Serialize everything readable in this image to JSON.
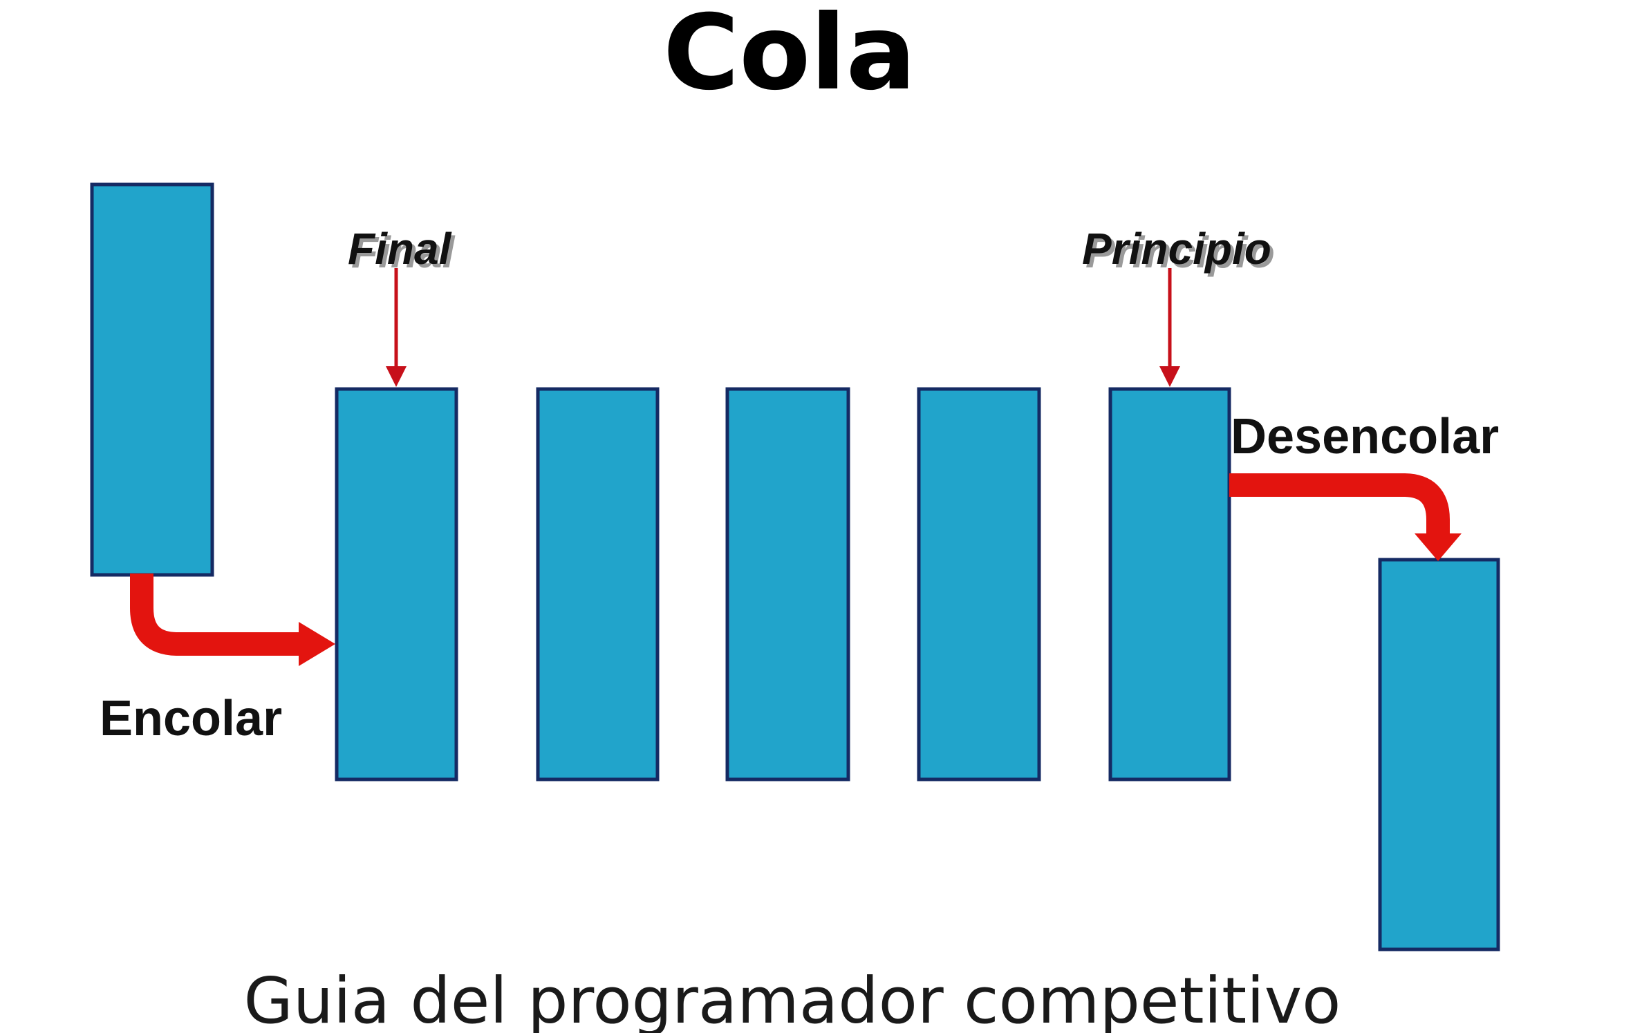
{
  "title": "Cola",
  "subtitle": "Guia del programador competitivo",
  "labels": {
    "enqueue": "Encolar",
    "dequeue": "Desencolar",
    "rear": "Final",
    "front": "Principio"
  },
  "colors": {
    "box_fill": "#21a4cb",
    "box_stroke": "#152a63",
    "arrow": "#e3140f",
    "pointer_arrow": "#c7101a"
  },
  "queue": {
    "element_count": 5,
    "incoming_element": 1,
    "outgoing_element": 1
  }
}
